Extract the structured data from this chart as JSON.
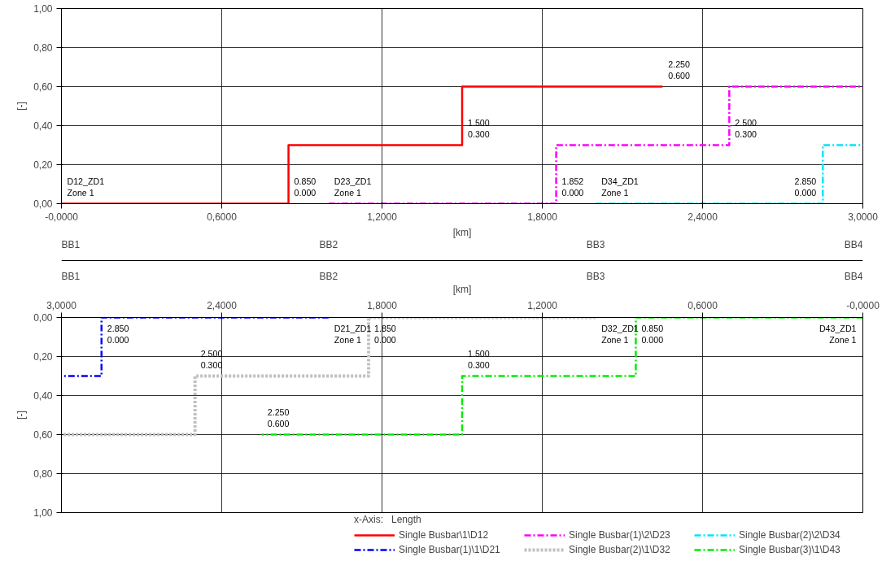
{
  "chart_data": [
    {
      "type": "step",
      "xlabel": "[km]",
      "ylabel": "[-]",
      "grid": true,
      "legend": "bottom",
      "marker": "none",
      "xlim": [
        0.0,
        3.0
      ],
      "ylim": [
        0.0,
        1.0
      ],
      "xticks": [
        {
          "value": 0.0,
          "label": "-0,0000"
        },
        {
          "value": 0.6,
          "label": "0,6000"
        },
        {
          "value": 1.2,
          "label": "1,2000"
        },
        {
          "value": 1.8,
          "label": "1,8000"
        },
        {
          "value": 2.4,
          "label": "2,4000"
        },
        {
          "value": 3.0,
          "label": "3,0000"
        }
      ],
      "yticks": [
        {
          "value": 0.0,
          "label": "0,00"
        },
        {
          "value": 0.2,
          "label": "0,20"
        },
        {
          "value": 0.4,
          "label": "0,40"
        },
        {
          "value": 0.6,
          "label": "0,60"
        },
        {
          "value": 0.8,
          "label": "0,80"
        },
        {
          "value": 1.0,
          "label": "1,00"
        }
      ],
      "series": [
        {
          "name": "Single Busbar\\1\\D12",
          "color": "#ff0000",
          "line_style": "solid",
          "x": [
            0.0,
            0.85,
            1.5,
            2.25
          ],
          "values": [
            0.0,
            0.3,
            0.6,
            0.6
          ]
        },
        {
          "name": "Single Busbar(1)\\2\\D23",
          "color": "#ff00ff",
          "line_style": "dashed",
          "x": [
            1.0,
            1.852,
            2.5,
            3.0
          ],
          "values": [
            0.0,
            0.3,
            0.6,
            0.6
          ]
        },
        {
          "name": "Single Busbar(2)\\2\\D34",
          "color": "#00e5ff",
          "line_style": "dashed",
          "x": [
            2.0,
            2.85,
            3.0
          ],
          "values": [
            0.0,
            0.3,
            0.3
          ]
        }
      ],
      "annotations": [
        {
          "text": "D12_ZD1\nZone 1",
          "x": 0.0,
          "y": 0.0
        },
        {
          "text": "0.850\n0.000",
          "x": 0.85,
          "y": 0.0
        },
        {
          "text": "1.500\n0.300",
          "x": 1.5,
          "y": 0.3
        },
        {
          "text": "2.250\n0.600",
          "x": 2.25,
          "y": 0.6
        },
        {
          "text": "D23_ZD1\nZone 1",
          "x": 1.0,
          "y": 0.0
        },
        {
          "text": "1.852\n0.000",
          "x": 1.852,
          "y": 0.0
        },
        {
          "text": "2.500\n0.300",
          "x": 2.5,
          "y": 0.3
        },
        {
          "text": "D34_ZD1\nZone 1",
          "x": 2.0,
          "y": 0.0
        },
        {
          "text": "2.850\n0.000",
          "x": 2.85,
          "y": 0.0
        }
      ]
    },
    {
      "type": "other",
      "categories": [
        "BB1",
        "BB2",
        "BB3",
        "BB4"
      ]
    },
    {
      "type": "step",
      "xlabel": "[km]",
      "ylabel": "[-]",
      "grid": true,
      "legend": "bottom",
      "legend_title": "x-Axis:   Length",
      "marker": "none",
      "xlim": [
        3.0,
        0.0
      ],
      "ylim": [
        1.0,
        0.0
      ],
      "xticks": [
        {
          "value": 3.0,
          "label": "3,0000"
        },
        {
          "value": 2.4,
          "label": "2,4000"
        },
        {
          "value": 1.8,
          "label": "1,8000"
        },
        {
          "value": 1.2,
          "label": "1,2000"
        },
        {
          "value": 0.6,
          "label": "0,6000"
        },
        {
          "value": 0.0,
          "label": "-0,0000"
        }
      ],
      "yticks": [
        {
          "value": 0.0,
          "label": "0,00"
        },
        {
          "value": 0.2,
          "label": "0,20"
        },
        {
          "value": 0.4,
          "label": "0,40"
        },
        {
          "value": 0.6,
          "label": "0,60"
        },
        {
          "value": 0.8,
          "label": "0,80"
        },
        {
          "value": 1.0,
          "label": "1,00"
        }
      ],
      "series": [
        {
          "name": "Single Busbar(1)\\1\\D21",
          "color": "#0000ff",
          "line_style": "dashed",
          "x": [
            2.0,
            2.85,
            3.0
          ],
          "values": [
            0.0,
            0.3,
            0.3
          ]
        },
        {
          "name": "Single Busbar(2)\\1\\D32",
          "color": "#c0c0c0",
          "line_style": "dotted",
          "x": [
            1.0,
            1.85,
            2.5,
            3.0
          ],
          "values": [
            0.0,
            0.3,
            0.6,
            0.6
          ]
        },
        {
          "name": "Single Busbar(3)\\1\\D43",
          "color": "#00ee00",
          "line_style": "dashed",
          "x": [
            0.0,
            0.85,
            1.5,
            2.25
          ],
          "values": [
            0.0,
            0.3,
            0.6,
            0.6
          ]
        }
      ],
      "annotations": [
        {
          "text": "2.850\n0.000",
          "x": 2.85,
          "y": 0.0
        },
        {
          "text": "D21_ZD1\nZone 1",
          "x": 2.0,
          "y": 0.0
        },
        {
          "text": "2.500\n0.300",
          "x": 2.5,
          "y": 0.3
        },
        {
          "text": "1.850\n0.000",
          "x": 1.85,
          "y": 0.0
        },
        {
          "text": "D32_ZD1\nZone 1",
          "x": 1.0,
          "y": 0.0
        },
        {
          "text": "2.250\n0.600",
          "x": 2.25,
          "y": 0.6
        },
        {
          "text": "1.500\n0.300",
          "x": 1.5,
          "y": 0.3
        },
        {
          "text": "0.850\n0.000",
          "x": 0.85,
          "y": 0.0
        },
        {
          "text": "D43_ZD1\nZone 1",
          "x": 0.0,
          "y": 0.0
        }
      ]
    }
  ]
}
